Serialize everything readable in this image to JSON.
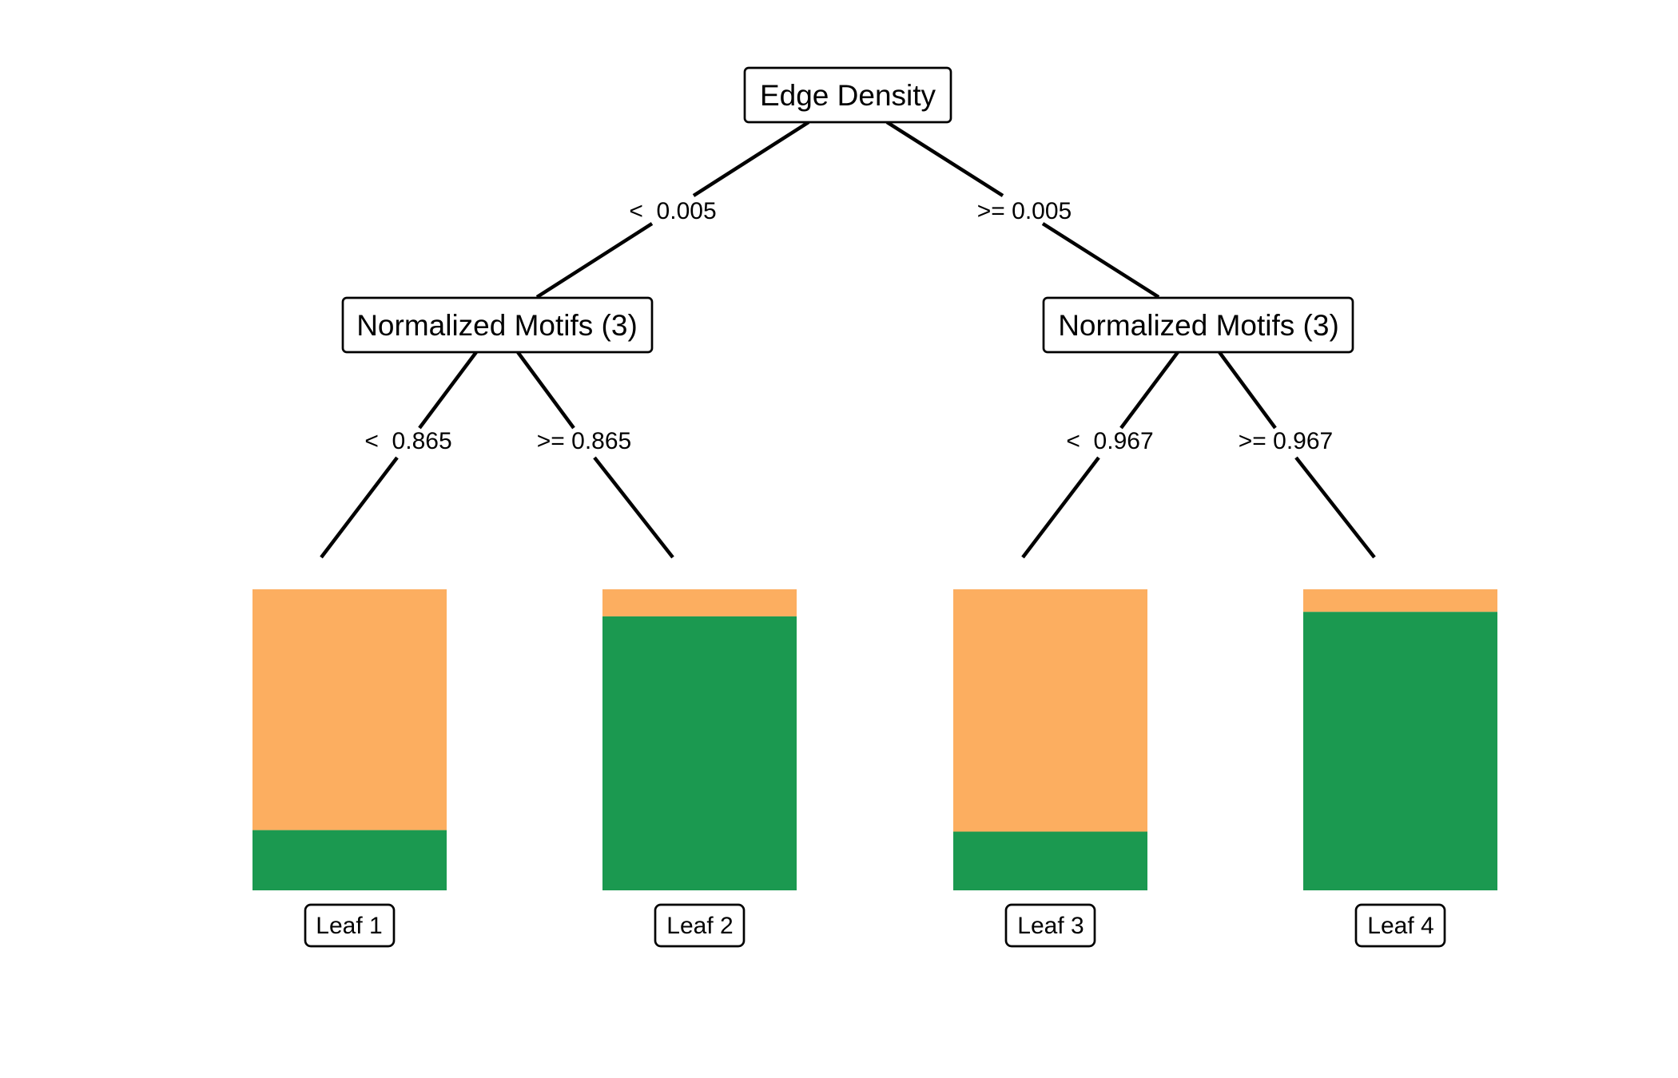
{
  "tree": {
    "root": {
      "label": "Edge Density",
      "left_edge": "<  0.005",
      "right_edge": ">= 0.005"
    },
    "left_node": {
      "label": "Normalized Motifs (3)",
      "left_edge": "<  0.865",
      "right_edge": ">= 0.865"
    },
    "right_node": {
      "label": "Normalized Motifs (3)",
      "left_edge": "<  0.967",
      "right_edge": ">= 0.967"
    },
    "leaves": [
      {
        "label": "Leaf 1",
        "green_fraction": 0.2,
        "orange_fraction": 0.8
      },
      {
        "label": "Leaf 2",
        "green_fraction": 0.91,
        "orange_fraction": 0.09
      },
      {
        "label": "Leaf 3",
        "green_fraction": 0.195,
        "orange_fraction": 0.805
      },
      {
        "label": "Leaf 4",
        "green_fraction": 0.925,
        "orange_fraction": 0.075
      }
    ]
  },
  "colors": {
    "orange": "#fcae60",
    "green": "#1b9950",
    "line": "#000000",
    "background": "#ffffff"
  }
}
